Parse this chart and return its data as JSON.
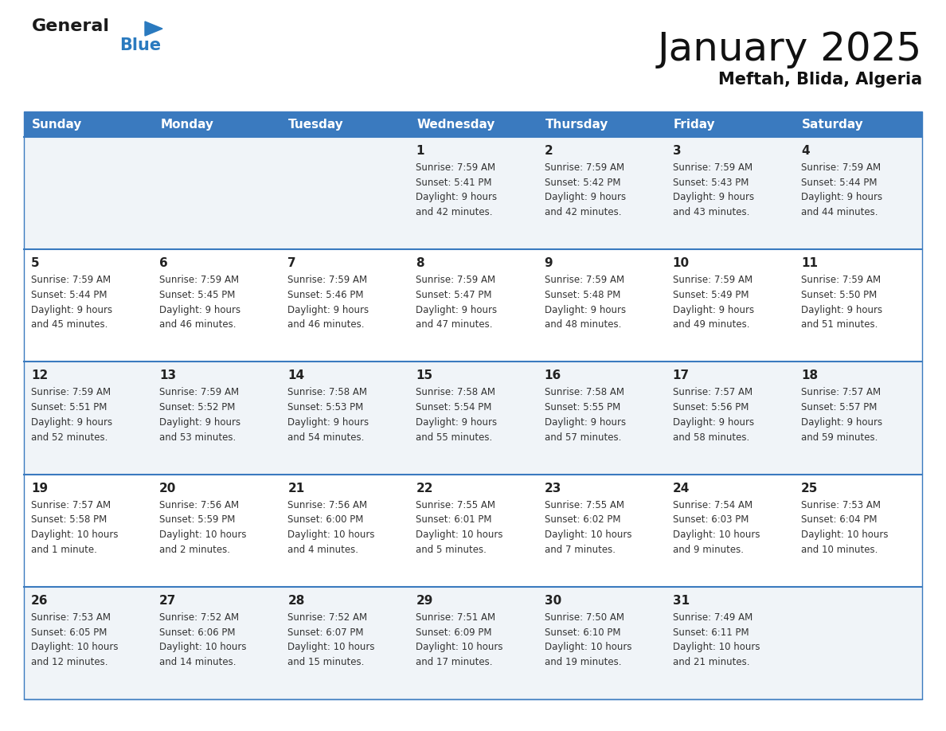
{
  "title": "January 2025",
  "subtitle": "Meftah, Blida, Algeria",
  "header_bg": "#3a7abf",
  "header_text": "#ffffff",
  "cell_bg_light": "#f0f4f8",
  "cell_bg_white": "#ffffff",
  "divider_color": "#3a7abf",
  "day_names": [
    "Sunday",
    "Monday",
    "Tuesday",
    "Wednesday",
    "Thursday",
    "Friday",
    "Saturday"
  ],
  "days": [
    {
      "day": 1,
      "col": 3,
      "row": 0,
      "sunrise": "7:59 AM",
      "sunset": "5:41 PM",
      "daylight": "9 hours and 42 minutes."
    },
    {
      "day": 2,
      "col": 4,
      "row": 0,
      "sunrise": "7:59 AM",
      "sunset": "5:42 PM",
      "daylight": "9 hours and 42 minutes."
    },
    {
      "day": 3,
      "col": 5,
      "row": 0,
      "sunrise": "7:59 AM",
      "sunset": "5:43 PM",
      "daylight": "9 hours and 43 minutes."
    },
    {
      "day": 4,
      "col": 6,
      "row": 0,
      "sunrise": "7:59 AM",
      "sunset": "5:44 PM",
      "daylight": "9 hours and 44 minutes."
    },
    {
      "day": 5,
      "col": 0,
      "row": 1,
      "sunrise": "7:59 AM",
      "sunset": "5:44 PM",
      "daylight": "9 hours and 45 minutes."
    },
    {
      "day": 6,
      "col": 1,
      "row": 1,
      "sunrise": "7:59 AM",
      "sunset": "5:45 PM",
      "daylight": "9 hours and 46 minutes."
    },
    {
      "day": 7,
      "col": 2,
      "row": 1,
      "sunrise": "7:59 AM",
      "sunset": "5:46 PM",
      "daylight": "9 hours and 46 minutes."
    },
    {
      "day": 8,
      "col": 3,
      "row": 1,
      "sunrise": "7:59 AM",
      "sunset": "5:47 PM",
      "daylight": "9 hours and 47 minutes."
    },
    {
      "day": 9,
      "col": 4,
      "row": 1,
      "sunrise": "7:59 AM",
      "sunset": "5:48 PM",
      "daylight": "9 hours and 48 minutes."
    },
    {
      "day": 10,
      "col": 5,
      "row": 1,
      "sunrise": "7:59 AM",
      "sunset": "5:49 PM",
      "daylight": "9 hours and 49 minutes."
    },
    {
      "day": 11,
      "col": 6,
      "row": 1,
      "sunrise": "7:59 AM",
      "sunset": "5:50 PM",
      "daylight": "9 hours and 51 minutes."
    },
    {
      "day": 12,
      "col": 0,
      "row": 2,
      "sunrise": "7:59 AM",
      "sunset": "5:51 PM",
      "daylight": "9 hours and 52 minutes."
    },
    {
      "day": 13,
      "col": 1,
      "row": 2,
      "sunrise": "7:59 AM",
      "sunset": "5:52 PM",
      "daylight": "9 hours and 53 minutes."
    },
    {
      "day": 14,
      "col": 2,
      "row": 2,
      "sunrise": "7:58 AM",
      "sunset": "5:53 PM",
      "daylight": "9 hours and 54 minutes."
    },
    {
      "day": 15,
      "col": 3,
      "row": 2,
      "sunrise": "7:58 AM",
      "sunset": "5:54 PM",
      "daylight": "9 hours and 55 minutes."
    },
    {
      "day": 16,
      "col": 4,
      "row": 2,
      "sunrise": "7:58 AM",
      "sunset": "5:55 PM",
      "daylight": "9 hours and 57 minutes."
    },
    {
      "day": 17,
      "col": 5,
      "row": 2,
      "sunrise": "7:57 AM",
      "sunset": "5:56 PM",
      "daylight": "9 hours and 58 minutes."
    },
    {
      "day": 18,
      "col": 6,
      "row": 2,
      "sunrise": "7:57 AM",
      "sunset": "5:57 PM",
      "daylight": "9 hours and 59 minutes."
    },
    {
      "day": 19,
      "col": 0,
      "row": 3,
      "sunrise": "7:57 AM",
      "sunset": "5:58 PM",
      "daylight": "10 hours and 1 minute."
    },
    {
      "day": 20,
      "col": 1,
      "row": 3,
      "sunrise": "7:56 AM",
      "sunset": "5:59 PM",
      "daylight": "10 hours and 2 minutes."
    },
    {
      "day": 21,
      "col": 2,
      "row": 3,
      "sunrise": "7:56 AM",
      "sunset": "6:00 PM",
      "daylight": "10 hours and 4 minutes."
    },
    {
      "day": 22,
      "col": 3,
      "row": 3,
      "sunrise": "7:55 AM",
      "sunset": "6:01 PM",
      "daylight": "10 hours and 5 minutes."
    },
    {
      "day": 23,
      "col": 4,
      "row": 3,
      "sunrise": "7:55 AM",
      "sunset": "6:02 PM",
      "daylight": "10 hours and 7 minutes."
    },
    {
      "day": 24,
      "col": 5,
      "row": 3,
      "sunrise": "7:54 AM",
      "sunset": "6:03 PM",
      "daylight": "10 hours and 9 minutes."
    },
    {
      "day": 25,
      "col": 6,
      "row": 3,
      "sunrise": "7:53 AM",
      "sunset": "6:04 PM",
      "daylight": "10 hours and 10 minutes."
    },
    {
      "day": 26,
      "col": 0,
      "row": 4,
      "sunrise": "7:53 AM",
      "sunset": "6:05 PM",
      "daylight": "10 hours and 12 minutes."
    },
    {
      "day": 27,
      "col": 1,
      "row": 4,
      "sunrise": "7:52 AM",
      "sunset": "6:06 PM",
      "daylight": "10 hours and 14 minutes."
    },
    {
      "day": 28,
      "col": 2,
      "row": 4,
      "sunrise": "7:52 AM",
      "sunset": "6:07 PM",
      "daylight": "10 hours and 15 minutes."
    },
    {
      "day": 29,
      "col": 3,
      "row": 4,
      "sunrise": "7:51 AM",
      "sunset": "6:09 PM",
      "daylight": "10 hours and 17 minutes."
    },
    {
      "day": 30,
      "col": 4,
      "row": 4,
      "sunrise": "7:50 AM",
      "sunset": "6:10 PM",
      "daylight": "10 hours and 19 minutes."
    },
    {
      "day": 31,
      "col": 5,
      "row": 4,
      "sunrise": "7:49 AM",
      "sunset": "6:11 PM",
      "daylight": "10 hours and 21 minutes."
    }
  ],
  "logo_general_color": "#1a1a1a",
  "logo_blue_color": "#2a7abf",
  "logo_triangle_color": "#2a7abf",
  "title_fontsize": 36,
  "subtitle_fontsize": 15,
  "header_fontsize": 11,
  "day_num_fontsize": 11,
  "cell_text_fontsize": 8.5
}
